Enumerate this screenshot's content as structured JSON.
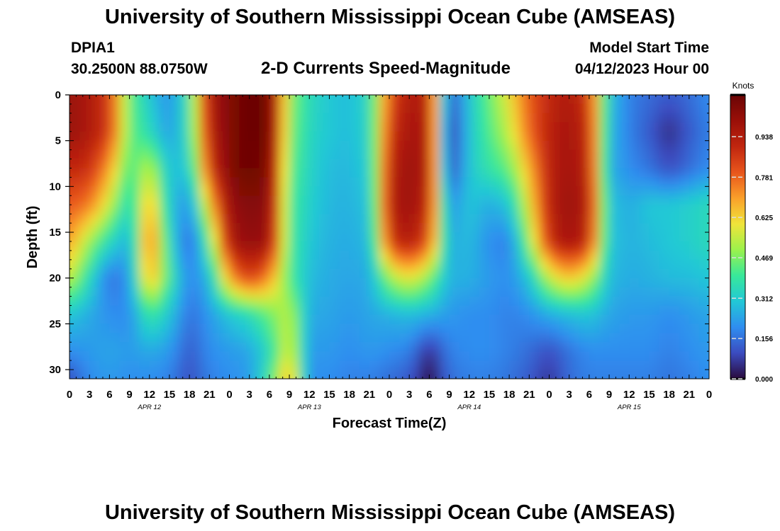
{
  "header": {
    "title": "University of Southern Mississippi Ocean Cube (AMSEAS)",
    "station": "DPIA1",
    "coords": "30.2500N  88.0750W",
    "subtitle": "2-D Currents Speed-Magnitude",
    "model_start_label": "Model Start Time",
    "model_start_value": "04/12/2023 Hour 00"
  },
  "footer": {
    "title": "University of Southern Mississippi Ocean Cube (AMSEAS)"
  },
  "chart_data": {
    "type": "heatmap",
    "xlabel": "Forecast Time(Z)",
    "ylabel": "Depth (ft)",
    "x_range_hours": [
      0,
      96
    ],
    "ylim": [
      0,
      31
    ],
    "y_inverted": true,
    "x_tick_labels": [
      "0",
      "3",
      "6",
      "9",
      "12",
      "15",
      "18",
      "21",
      "0",
      "3",
      "6",
      "9",
      "12",
      "15",
      "18",
      "21",
      "0",
      "3",
      "6",
      "9",
      "12",
      "15",
      "18",
      "21",
      "0",
      "3",
      "6",
      "9",
      "12",
      "15",
      "18",
      "21",
      "0"
    ],
    "y_ticks": [
      0,
      5,
      10,
      15,
      20,
      25,
      30
    ],
    "date_labels": [
      {
        "hour": 12,
        "text": "APR 12"
      },
      {
        "hour": 36,
        "text": "APR 13"
      },
      {
        "hour": 60,
        "text": "APR 14"
      },
      {
        "hour": 84,
        "text": "APR 15"
      }
    ],
    "colorbar": {
      "label": "Knots",
      "min": 0.0,
      "max": 1.1,
      "ticks": [
        "0.000",
        "0.156",
        "0.312",
        "0.469",
        "0.625",
        "0.781",
        "0.938"
      ]
    },
    "colormap": [
      "#2a0a3c",
      "#3b4cc0",
      "#2f8ef0",
      "#22c8d6",
      "#38e89a",
      "#9cf24c",
      "#f0e43a",
      "#faa02a",
      "#e8551c",
      "#c0260f",
      "#9a0f08",
      "#6a0505"
    ],
    "depth_levels_ft": [
      0,
      4,
      8,
      12,
      16,
      20,
      24,
      28,
      31
    ],
    "time_hours": [
      0,
      3,
      6,
      9,
      12,
      15,
      18,
      21,
      24,
      27,
      30,
      33,
      36,
      39,
      42,
      45,
      48,
      51,
      54,
      57,
      60,
      63,
      66,
      69,
      72,
      75,
      78,
      81,
      84,
      87,
      90,
      93,
      96
    ],
    "speed_knots_by_depth": [
      [
        1.0,
        0.95,
        0.85,
        0.45,
        0.3,
        0.2,
        0.4,
        0.95,
        1.05,
        1.1,
        1.08,
        0.5,
        0.35,
        0.3,
        0.28,
        0.35,
        0.8,
        0.95,
        0.9,
        0.1,
        0.3,
        0.45,
        0.6,
        0.8,
        0.9,
        0.95,
        0.85,
        0.3,
        0.18,
        0.15,
        0.12,
        0.15,
        0.2
      ],
      [
        1.0,
        0.95,
        0.85,
        0.45,
        0.35,
        0.22,
        0.38,
        0.92,
        1.05,
        1.1,
        1.08,
        0.48,
        0.34,
        0.3,
        0.28,
        0.34,
        0.85,
        0.98,
        0.92,
        0.05,
        0.3,
        0.42,
        0.55,
        0.78,
        0.92,
        0.97,
        0.88,
        0.28,
        0.18,
        0.12,
        0.05,
        0.12,
        0.18
      ],
      [
        0.9,
        0.88,
        0.7,
        0.4,
        0.55,
        0.28,
        0.32,
        0.85,
        1.05,
        1.1,
        1.05,
        0.45,
        0.33,
        0.28,
        0.27,
        0.32,
        0.9,
        1.0,
        0.92,
        0.08,
        0.3,
        0.38,
        0.45,
        0.68,
        0.92,
        0.98,
        0.9,
        0.26,
        0.2,
        0.16,
        0.1,
        0.15,
        0.2
      ],
      [
        0.8,
        0.75,
        0.55,
        0.32,
        0.7,
        0.3,
        0.2,
        0.65,
        1.0,
        1.05,
        1.02,
        0.42,
        0.32,
        0.27,
        0.26,
        0.3,
        0.92,
        1.0,
        0.88,
        0.2,
        0.3,
        0.25,
        0.3,
        0.6,
        0.92,
        1.0,
        0.92,
        0.3,
        0.25,
        0.3,
        0.3,
        0.32,
        0.35
      ],
      [
        0.7,
        0.5,
        0.35,
        0.25,
        0.78,
        0.35,
        0.12,
        0.45,
        0.95,
        1.02,
        0.98,
        0.42,
        0.3,
        0.26,
        0.25,
        0.28,
        0.85,
        0.95,
        0.8,
        0.25,
        0.28,
        0.2,
        0.18,
        0.5,
        0.88,
        0.98,
        0.88,
        0.3,
        0.26,
        0.28,
        0.3,
        0.32,
        0.35
      ],
      [
        0.55,
        0.35,
        0.15,
        0.22,
        0.7,
        0.4,
        0.18,
        0.28,
        0.7,
        0.85,
        0.72,
        0.42,
        0.28,
        0.25,
        0.24,
        0.25,
        0.5,
        0.6,
        0.48,
        0.26,
        0.26,
        0.22,
        0.2,
        0.3,
        0.55,
        0.65,
        0.55,
        0.28,
        0.25,
        0.26,
        0.28,
        0.28,
        0.3
      ],
      [
        0.3,
        0.25,
        0.2,
        0.2,
        0.4,
        0.3,
        0.15,
        0.22,
        0.3,
        0.35,
        0.45,
        0.55,
        0.25,
        0.24,
        0.22,
        0.24,
        0.26,
        0.28,
        0.26,
        0.22,
        0.2,
        0.2,
        0.18,
        0.2,
        0.25,
        0.28,
        0.3,
        0.24,
        0.22,
        0.22,
        0.2,
        0.22,
        0.24
      ],
      [
        0.2,
        0.22,
        0.24,
        0.22,
        0.25,
        0.22,
        0.12,
        0.2,
        0.22,
        0.24,
        0.35,
        0.6,
        0.22,
        0.22,
        0.2,
        0.22,
        0.2,
        0.18,
        0.05,
        0.18,
        0.2,
        0.2,
        0.18,
        0.15,
        0.1,
        0.16,
        0.2,
        0.2,
        0.2,
        0.2,
        0.18,
        0.2,
        0.22
      ],
      [
        0.1,
        0.2,
        0.22,
        0.2,
        0.2,
        0.18,
        0.1,
        0.18,
        0.2,
        0.22,
        0.4,
        0.7,
        0.2,
        0.2,
        0.18,
        0.18,
        0.15,
        0.12,
        0.0,
        0.15,
        0.18,
        0.18,
        0.16,
        0.12,
        0.06,
        0.15,
        0.18,
        0.18,
        0.18,
        0.18,
        0.16,
        0.18,
        0.2
      ]
    ]
  }
}
